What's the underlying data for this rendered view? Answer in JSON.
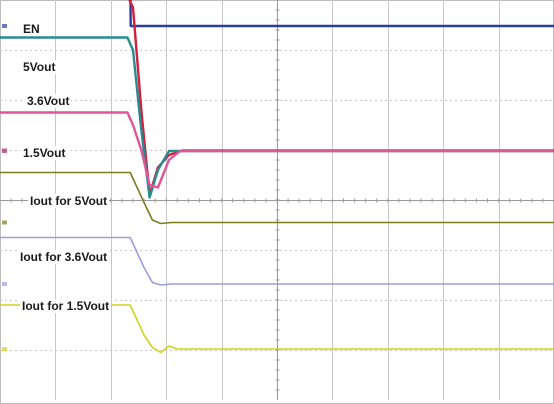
{
  "chart_data": {
    "type": "line",
    "title": "",
    "xlabel": "",
    "ylabel": "",
    "grid": true,
    "divisions": {
      "x": 10,
      "y": 8
    },
    "xlim": [
      0,
      10
    ],
    "x_unit": "div",
    "y_unit": "div",
    "legend": "none",
    "series": [
      {
        "name": "EN",
        "color": "#2b3f9a",
        "x": [
          0,
          2.35,
          2.36,
          10
        ],
        "y": [
          8.73,
          8.73,
          7.48,
          7.48
        ]
      },
      {
        "name": "5Vout",
        "color": "#d21f3c",
        "x": [
          0,
          2.3,
          2.4,
          2.55,
          2.7,
          2.85,
          3.05,
          3.3,
          10
        ],
        "y": [
          8.09,
          8.09,
          7.85,
          5.8,
          4.1,
          4.65,
          4.9,
          4.99,
          4.99
        ]
      },
      {
        "name": "3.6Vout",
        "color": "#2a8b8f",
        "x": [
          0,
          2.3,
          2.4,
          2.55,
          2.7,
          2.85,
          3.05,
          10
        ],
        "y": [
          7.25,
          7.25,
          7.0,
          5.4,
          4.05,
          4.6,
          4.98,
          4.98
        ]
      },
      {
        "name": "1.5Vout",
        "color": "#e0559a",
        "x": [
          0,
          2.3,
          2.4,
          2.55,
          2.7,
          2.85,
          3.05,
          3.25,
          10
        ],
        "y": [
          5.75,
          5.75,
          5.5,
          5.0,
          4.3,
          4.25,
          4.8,
          4.98,
          4.98
        ]
      },
      {
        "name": "Iout for 5Vout",
        "color": "#7d7d1e",
        "x": [
          0,
          2.35,
          2.6,
          2.75,
          2.9,
          3.1,
          10
        ],
        "y": [
          4.55,
          4.55,
          3.95,
          3.6,
          3.53,
          3.55,
          3.55
        ]
      },
      {
        "name": "Iout for 3.6Vout",
        "color": "#9a9ce0",
        "x": [
          0,
          2.35,
          2.6,
          2.75,
          2.9,
          3.1,
          10
        ],
        "y": [
          3.25,
          3.25,
          2.65,
          2.35,
          2.3,
          2.32,
          2.32
        ]
      },
      {
        "name": "Iout for 1.5Vout",
        "color": "#d2d21e",
        "x": [
          0,
          2.35,
          2.6,
          2.75,
          2.9,
          3.05,
          3.2,
          10
        ],
        "y": [
          1.9,
          1.9,
          1.3,
          1.05,
          0.95,
          1.08,
          1.02,
          1.02
        ]
      }
    ],
    "labels": [
      "EN",
      "5Vout",
      "3.6Vout",
      "1.5Vout",
      "Iout for 5Vout",
      "Iout for 3.6Vout",
      "Iout for 1.5Vout"
    ]
  }
}
